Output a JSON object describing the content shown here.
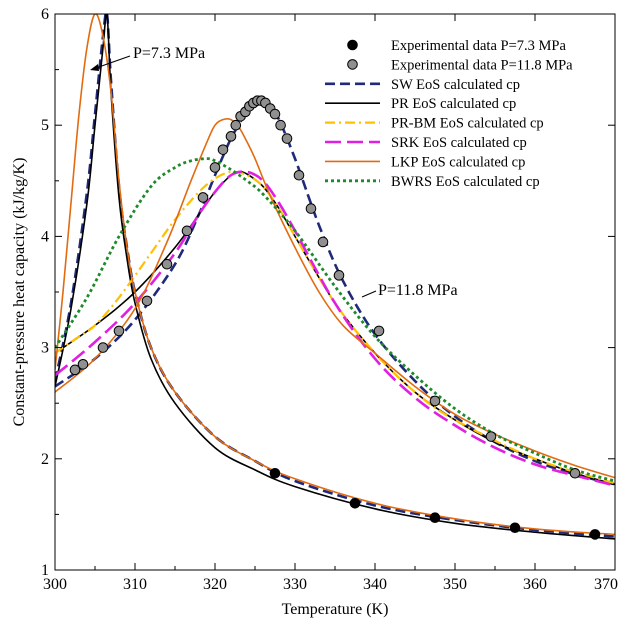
{
  "chart_data": {
    "type": "line",
    "title": "",
    "xlabel": "Temperature (K)",
    "ylabel": "Constant-pressure heat capacity (kJ/kg/K)",
    "xlim": [
      300,
      370
    ],
    "ylim": [
      1,
      6
    ],
    "xticks": [
      300,
      310,
      320,
      330,
      340,
      350,
      360,
      370
    ],
    "yticks": [
      1,
      2,
      3,
      4,
      5,
      6
    ],
    "xtick_labels": [
      "300",
      "310",
      "320",
      "330",
      "340",
      "350",
      "360",
      "370"
    ],
    "ytick_labels": [
      "1",
      "2",
      "3",
      "4",
      "5",
      "6"
    ],
    "grid": false,
    "legend_position": "top-right",
    "annotations": [
      {
        "text": "P=7.3 MPa"
      },
      {
        "text": "P=11.8 MPa"
      }
    ],
    "series": [
      {
        "name": "Experimental data P=7.3 MPa",
        "kind": "scatter",
        "color": "#000000",
        "x": [
          327.5,
          337.5,
          347.5,
          357.5,
          367.5
        ],
        "y": [
          1.87,
          1.6,
          1.47,
          1.38,
          1.32
        ]
      },
      {
        "name": "Experimental data P=11.8 MPa",
        "kind": "scatter",
        "color": "#909090",
        "x": [
          302.5,
          303.5,
          306.0,
          308.0,
          311.5,
          314.0,
          316.5,
          318.5,
          320.0,
          321.0,
          322.0,
          322.6,
          323.2,
          323.8,
          324.3,
          324.8,
          325.3,
          325.8,
          326.3,
          326.9,
          327.5,
          328.2,
          329.0,
          330.5,
          332.0,
          333.5,
          335.5,
          340.5,
          347.5,
          354.5,
          365.0
        ],
        "y": [
          2.8,
          2.85,
          3.0,
          3.15,
          3.42,
          3.75,
          4.05,
          4.35,
          4.62,
          4.78,
          4.9,
          5.0,
          5.08,
          5.12,
          5.17,
          5.2,
          5.22,
          5.22,
          5.2,
          5.15,
          5.1,
          5.0,
          4.88,
          4.55,
          4.25,
          3.95,
          3.65,
          3.15,
          2.52,
          2.2,
          1.87
        ]
      },
      {
        "name": "SW EoS calculated cp",
        "kind": "line",
        "color": "#1f2a7a",
        "dash": "dash",
        "curves": [
          {
            "x": [
              300,
              302,
              304,
              305,
              306,
              306.5,
              307,
              308,
              309,
              310,
              312,
              315,
              320,
              325,
              330,
              340,
              350,
              360,
              370
            ],
            "y": [
              2.7,
              3.4,
              4.4,
              5.1,
              5.8,
              6.0,
              5.4,
              4.45,
              3.9,
              3.5,
              3.0,
              2.6,
              2.2,
              1.98,
              1.8,
              1.58,
              1.45,
              1.36,
              1.3
            ]
          },
          {
            "x": [
              300,
              305,
              310,
              315,
              318,
              320,
              322,
              324,
              325,
              326,
              327,
              328,
              330,
              333,
              336,
              340,
              345,
              350,
              355,
              360,
              365,
              370
            ],
            "y": [
              2.65,
              2.9,
              3.25,
              3.75,
              4.2,
              4.55,
              4.88,
              5.12,
              5.18,
              5.2,
              5.16,
              5.05,
              4.7,
              4.1,
              3.6,
              3.12,
              2.7,
              2.38,
              2.15,
              1.98,
              1.86,
              1.77
            ]
          }
        ]
      },
      {
        "name": "PR EoS calculated cp",
        "kind": "line",
        "color": "#000000",
        "dash": "solid",
        "curves": [
          {
            "x": [
              300,
              302,
              304,
              305,
              306,
              306.5,
              307,
              308,
              309,
              310,
              312,
              315,
              320,
              325,
              330,
              340,
              350,
              360,
              370
            ],
            "y": [
              2.65,
              3.35,
              4.3,
              5.0,
              5.7,
              6.0,
              5.3,
              4.35,
              3.8,
              3.4,
              2.9,
              2.5,
              2.1,
              1.9,
              1.75,
              1.55,
              1.42,
              1.34,
              1.28
            ]
          },
          {
            "x": [
              300,
              305,
              310,
              315,
              318,
              320,
              322,
              323,
              324,
              326,
              328,
              330,
              335,
              340,
              345,
              350,
              355,
              360,
              365,
              370
            ],
            "y": [
              2.95,
              3.2,
              3.5,
              3.9,
              4.2,
              4.4,
              4.55,
              4.58,
              4.56,
              4.45,
              4.25,
              4.0,
              3.4,
              2.95,
              2.6,
              2.35,
              2.15,
              2.0,
              1.87,
              1.77
            ]
          }
        ]
      },
      {
        "name": "PR-BM EoS calculated cp",
        "kind": "line",
        "color": "#ffc000",
        "dash": "dashdot",
        "curves": [
          {
            "x": [
              300,
              303,
              305,
              308,
              312,
              315,
              318,
              320,
              322,
              324,
              326,
              328,
              330,
              335,
              340,
              345,
              350,
              360,
              370
            ],
            "y": [
              2.95,
              3.1,
              3.2,
              3.45,
              3.85,
              4.15,
              4.4,
              4.52,
              4.58,
              4.55,
              4.45,
              4.25,
              4.0,
              3.4,
              2.95,
              2.6,
              2.35,
              2.0,
              1.78
            ]
          }
        ]
      },
      {
        "name": "SRK EoS calculated cp",
        "kind": "line",
        "color": "#e020e0",
        "dash": "longdash",
        "curves": [
          {
            "x": [
              300,
              305,
              310,
              315,
              318,
              320,
              322,
              324,
              326,
              328,
              330,
              335,
              340,
              345,
              350,
              355,
              360,
              365,
              370
            ],
            "y": [
              2.75,
              3.05,
              3.4,
              3.85,
              4.2,
              4.4,
              4.55,
              4.58,
              4.5,
              4.3,
              4.05,
              3.4,
              2.9,
              2.55,
              2.3,
              2.1,
              1.95,
              1.85,
              1.76
            ]
          }
        ]
      },
      {
        "name": "LKP EoS calculated cp",
        "kind": "line",
        "color": "#e26b10",
        "dash": "solid",
        "curves": [
          {
            "x": [
              300,
              301,
              302,
              303,
              304,
              305,
              306,
              307,
              308,
              309,
              310,
              312,
              315,
              320,
              325,
              330,
              340,
              350,
              360,
              370
            ],
            "y": [
              2.8,
              3.5,
              4.3,
              5.1,
              5.7,
              6.0,
              5.8,
              5.3,
              4.5,
              3.9,
              3.5,
              3.0,
              2.6,
              2.2,
              1.98,
              1.82,
              1.6,
              1.46,
              1.37,
              1.32
            ]
          },
          {
            "x": [
              300,
              305,
              310,
              314,
              317,
              319,
              320,
              321,
              322,
              323,
              324,
              325,
              327,
              330,
              333,
              336,
              340,
              345,
              350,
              355,
              360,
              365,
              370
            ],
            "y": [
              2.6,
              2.9,
              3.35,
              3.95,
              4.5,
              4.85,
              5.0,
              5.05,
              5.05,
              4.98,
              4.85,
              4.7,
              4.35,
              3.9,
              3.5,
              3.2,
              2.95,
              2.65,
              2.4,
              2.22,
              2.07,
              1.94,
              1.83
            ]
          }
        ]
      },
      {
        "name": "BWRS EoS calculated cp",
        "kind": "line",
        "color": "#1f8a2a",
        "dash": "dot",
        "curves": [
          {
            "x": [
              300,
              304,
              308,
              312,
              315,
              317,
              319,
              320,
              322,
              324,
              326,
              330,
              335,
              340,
              345,
              350,
              355,
              360,
              365,
              370
            ],
            "y": [
              3.0,
              3.45,
              4.0,
              4.45,
              4.62,
              4.68,
              4.7,
              4.68,
              4.6,
              4.5,
              4.38,
              4.05,
              3.55,
              3.1,
              2.75,
              2.45,
              2.22,
              2.05,
              1.9,
              1.8
            ]
          }
        ]
      }
    ]
  }
}
